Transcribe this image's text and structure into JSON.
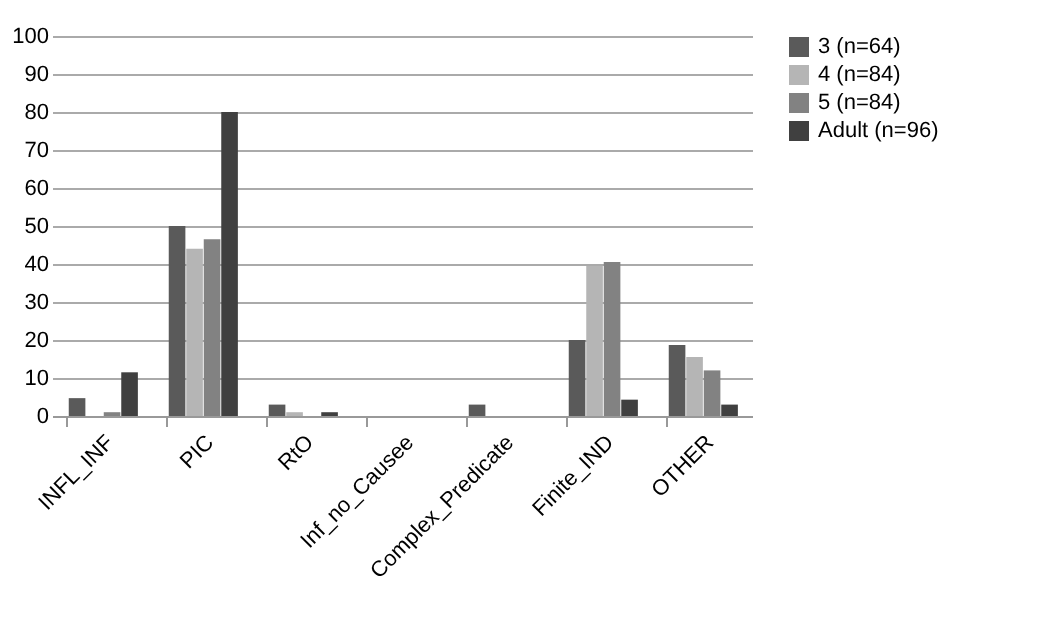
{
  "chart_data": {
    "type": "bar",
    "categories": [
      "INFL_INF",
      "PIC",
      "RtO",
      "Inf_no_Causee",
      "Complex_Predicate",
      "Finite_IND",
      "OTHER"
    ],
    "series": [
      {
        "name": "3 (n=64)",
        "color": "#5a5a5a",
        "values": [
          4.7,
          50,
          3,
          0,
          3,
          20,
          18.7
        ]
      },
      {
        "name": "4 (n=84)",
        "color": "#b5b5b5",
        "values": [
          0,
          44,
          1,
          0,
          0,
          39.5,
          15.5
        ]
      },
      {
        "name": "5 (n=84)",
        "color": "#828282",
        "values": [
          1,
          46.5,
          0,
          0,
          0,
          40.5,
          12
        ]
      },
      {
        "name": "Adult (n=96)",
        "color": "#404040",
        "values": [
          11.5,
          80,
          1,
          0,
          0,
          4.3,
          3
        ]
      }
    ],
    "ylim": [
      0,
      100
    ],
    "yticks": [
      0,
      10,
      20,
      30,
      40,
      50,
      60,
      70,
      80,
      90,
      100
    ],
    "grid": "y",
    "legend": "right"
  }
}
